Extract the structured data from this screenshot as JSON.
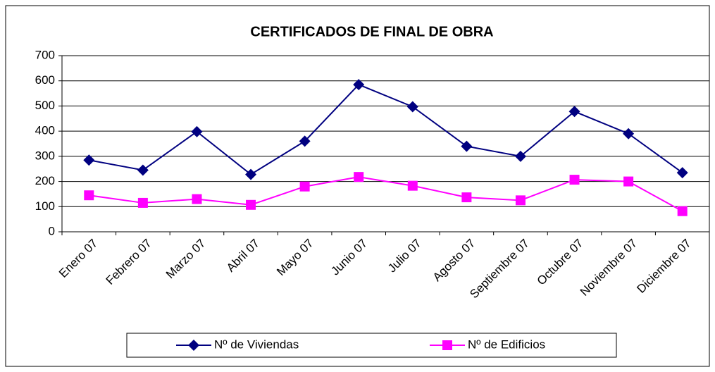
{
  "chart_data": {
    "type": "line",
    "title": "CERTIFICADOS DE FINAL DE OBRA",
    "categories": [
      "Enero 07",
      "Febrero 07",
      "Marzo 07",
      "Abril 07",
      "Mayo 07",
      "Junio 07",
      "Julio 07",
      "Agosto 07",
      "Septiembre 07",
      "Octubre 07",
      "Noviembre 07",
      "Diciembre 07"
    ],
    "series": [
      {
        "name": "Nº de Viviendas",
        "color": "#000080",
        "marker": "diamond",
        "values": [
          285,
          245,
          398,
          228,
          360,
          585,
          497,
          340,
          300,
          478,
          390,
          235
        ]
      },
      {
        "name": "Nº de Edificios",
        "color": "#ff00ff",
        "marker": "square",
        "values": [
          145,
          115,
          130,
          107,
          180,
          218,
          183,
          137,
          125,
          207,
          200,
          82
        ]
      }
    ],
    "ylim": [
      0,
      700
    ],
    "yticks": [
      0,
      100,
      200,
      300,
      400,
      500,
      600,
      700
    ],
    "grid": true,
    "legend": "bottom"
  }
}
